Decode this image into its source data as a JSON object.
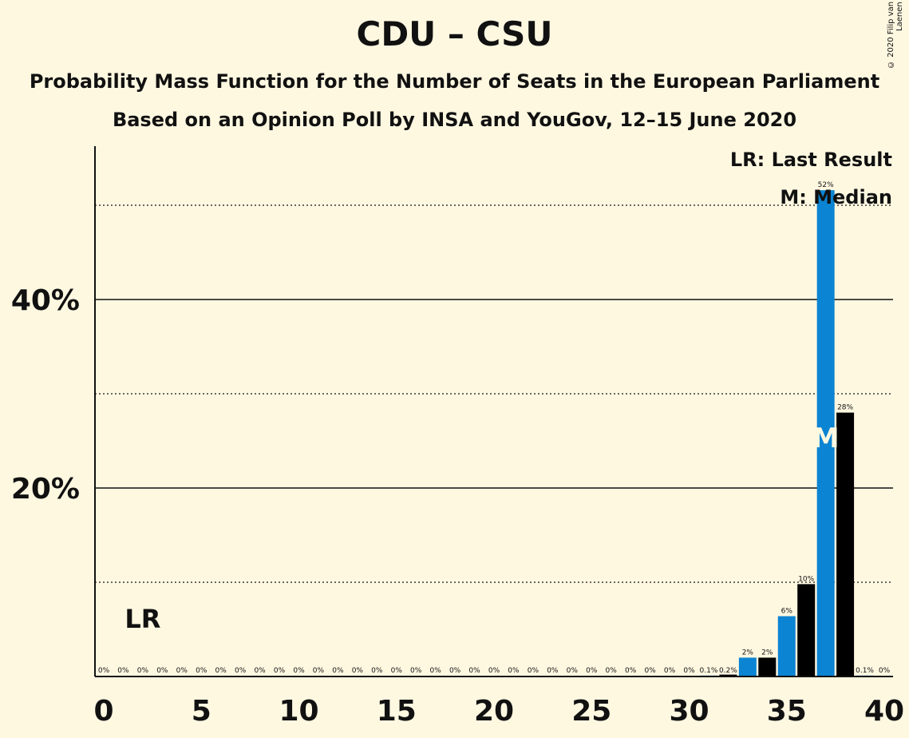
{
  "header": {
    "title": "CDU – CSU",
    "subtitle": "Probability Mass Function for the Number of Seats in the European Parliament",
    "subtitle2": "Based on an Opinion Poll by INSA and YouGov, 12–15 June 2020",
    "copyright": "© 2020 Filip van Laenen"
  },
  "legend": {
    "last_result": "LR: Last Result",
    "median": "M: Median"
  },
  "colors": {
    "background": "#FFF8E1",
    "blue": "#0B84D3",
    "black": "#000000"
  },
  "chart_data": {
    "type": "bar",
    "xlim": [
      0,
      40
    ],
    "ylim": [
      0,
      56
    ],
    "x_ticks": [
      0,
      5,
      10,
      15,
      20,
      25,
      30,
      35,
      40
    ],
    "y_ticks_labeled": [
      {
        "value": 20,
        "label": "20%"
      },
      {
        "value": 40,
        "label": "40%"
      }
    ],
    "gridlines_solid": [
      20,
      40
    ],
    "gridlines_dotted": [
      10,
      30,
      50
    ],
    "last_result": {
      "seat": 2,
      "label": "LR"
    },
    "median": {
      "seat": 37,
      "label": "M"
    },
    "bars": [
      {
        "seat": 0,
        "value": 0,
        "label": "0%"
      },
      {
        "seat": 1,
        "value": 0,
        "label": "0%"
      },
      {
        "seat": 2,
        "value": 0,
        "label": "0%"
      },
      {
        "seat": 3,
        "value": 0,
        "label": "0%"
      },
      {
        "seat": 4,
        "value": 0,
        "label": "0%"
      },
      {
        "seat": 5,
        "value": 0,
        "label": "0%"
      },
      {
        "seat": 6,
        "value": 0,
        "label": "0%"
      },
      {
        "seat": 7,
        "value": 0,
        "label": "0%"
      },
      {
        "seat": 8,
        "value": 0,
        "label": "0%"
      },
      {
        "seat": 9,
        "value": 0,
        "label": "0%"
      },
      {
        "seat": 10,
        "value": 0,
        "label": "0%"
      },
      {
        "seat": 11,
        "value": 0,
        "label": "0%"
      },
      {
        "seat": 12,
        "value": 0,
        "label": "0%"
      },
      {
        "seat": 13,
        "value": 0,
        "label": "0%"
      },
      {
        "seat": 14,
        "value": 0,
        "label": "0%"
      },
      {
        "seat": 15,
        "value": 0,
        "label": "0%"
      },
      {
        "seat": 16,
        "value": 0,
        "label": "0%"
      },
      {
        "seat": 17,
        "value": 0,
        "label": "0%"
      },
      {
        "seat": 18,
        "value": 0,
        "label": "0%"
      },
      {
        "seat": 19,
        "value": 0,
        "label": "0%"
      },
      {
        "seat": 20,
        "value": 0,
        "label": "0%"
      },
      {
        "seat": 21,
        "value": 0,
        "label": "0%"
      },
      {
        "seat": 22,
        "value": 0,
        "label": "0%"
      },
      {
        "seat": 23,
        "value": 0,
        "label": "0%"
      },
      {
        "seat": 24,
        "value": 0,
        "label": "0%"
      },
      {
        "seat": 25,
        "value": 0,
        "label": "0%"
      },
      {
        "seat": 26,
        "value": 0,
        "label": "0%"
      },
      {
        "seat": 27,
        "value": 0,
        "label": "0%"
      },
      {
        "seat": 28,
        "value": 0,
        "label": "0%"
      },
      {
        "seat": 29,
        "value": 0,
        "label": "0%"
      },
      {
        "seat": 30,
        "value": 0,
        "label": "0%"
      },
      {
        "seat": 31,
        "value": 0.1,
        "label": "0.1%"
      },
      {
        "seat": 32,
        "value": 0.2,
        "label": "0.2%"
      },
      {
        "seat": 33,
        "value": 2,
        "label": "2%"
      },
      {
        "seat": 34,
        "value": 2,
        "label": "2%"
      },
      {
        "seat": 35,
        "value": 6.4,
        "label": "6%"
      },
      {
        "seat": 36,
        "value": 9.8,
        "label": "10%"
      },
      {
        "seat": 37,
        "value": 51.6,
        "label": "52%"
      },
      {
        "seat": 38,
        "value": 28,
        "label": "28%"
      },
      {
        "seat": 39,
        "value": 0.1,
        "label": "0.1%"
      },
      {
        "seat": 40,
        "value": 0,
        "label": "0%"
      }
    ]
  }
}
